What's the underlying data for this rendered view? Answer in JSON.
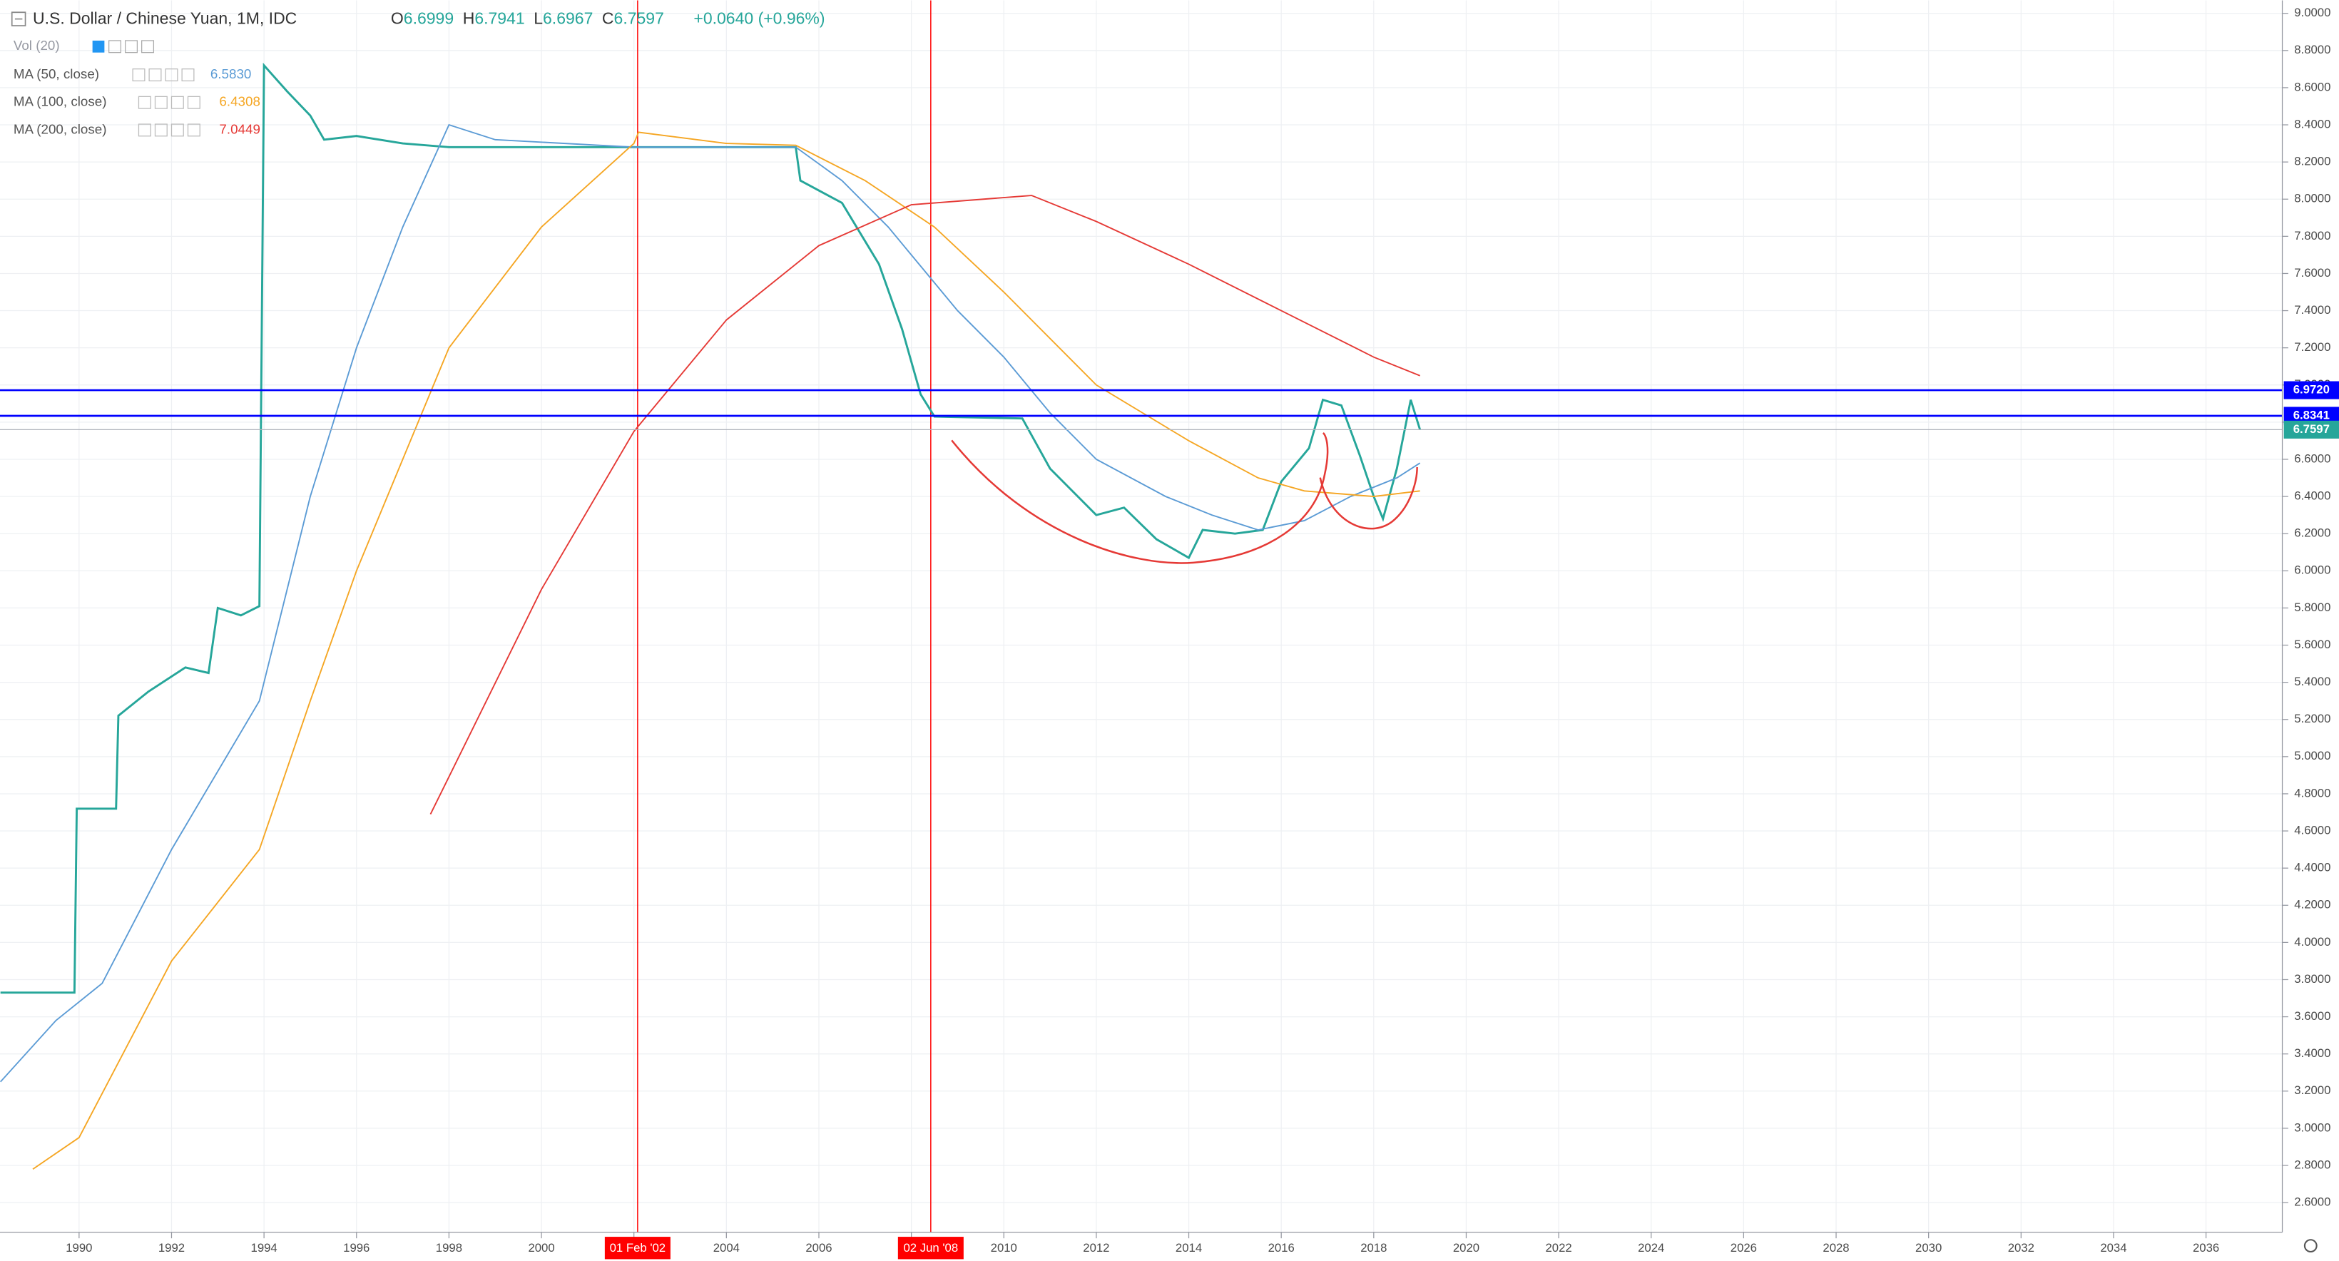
{
  "chart_data": {
    "type": "line",
    "title": "U.S. Dollar / Chinese Yuan, 1M, IDC",
    "ohlc": [
      {
        "label": "O",
        "value": 6.6999
      },
      {
        "label": "H",
        "value": 6.7941
      },
      {
        "label": "L",
        "value": 6.6967
      },
      {
        "label": "C",
        "value": 6.7597
      }
    ],
    "change": "+0.0640 (+0.96%)",
    "volume_label": "Vol (20)",
    "xlim": [
      1988.29,
      2037.65
    ],
    "ylim": [
      2.44,
      9.07
    ],
    "xticks": [
      1990,
      1992,
      1994,
      1996,
      1998,
      2000,
      2002,
      2004,
      2006,
      2008,
      2010,
      2012,
      2014,
      2016,
      2018,
      2020,
      2022,
      2024,
      2026,
      2028,
      2030,
      2032,
      2034,
      2036
    ],
    "yticks": [
      {
        "value": 2.6,
        "label": "2.6000"
      },
      {
        "value": 2.8,
        "label": "2.8000"
      },
      {
        "value": 3.0,
        "label": "3.0000"
      },
      {
        "value": 3.2,
        "label": "3.2000"
      },
      {
        "value": 3.4,
        "label": "3.4000"
      },
      {
        "value": 3.6,
        "label": "3.6000"
      },
      {
        "value": 3.8,
        "label": "3.8000"
      },
      {
        "value": 4.0,
        "label": "4.0000"
      },
      {
        "value": 4.2,
        "label": "4.2000"
      },
      {
        "value": 4.4,
        "label": "4.4000"
      },
      {
        "value": 4.6,
        "label": "4.6000"
      },
      {
        "value": 4.8,
        "label": "4.8000"
      },
      {
        "value": 5.0,
        "label": "5.0000"
      },
      {
        "value": 5.2,
        "label": "5.2000"
      },
      {
        "value": 5.4,
        "label": "5.4000"
      },
      {
        "value": 5.6,
        "label": "5.6000"
      },
      {
        "value": 5.8,
        "label": "5.8000"
      },
      {
        "value": 6.0,
        "label": "6.0000"
      },
      {
        "value": 6.2,
        "label": "6.2000"
      },
      {
        "value": 6.4,
        "label": "6.4000"
      },
      {
        "value": 6.6,
        "label": "6.6000"
      },
      {
        "value": 6.8,
        "label": "6.8000"
      },
      {
        "value": 7.0,
        "label": "7.0000"
      },
      {
        "value": 7.2,
        "label": "7.2000"
      },
      {
        "value": 7.4,
        "label": "7.4000"
      },
      {
        "value": 7.6,
        "label": "7.6000"
      },
      {
        "value": 7.8,
        "label": "7.8000"
      },
      {
        "value": 8.0,
        "label": "8.0000"
      },
      {
        "value": 8.2,
        "label": "8.2000"
      },
      {
        "value": 8.4,
        "label": "8.4000"
      },
      {
        "value": 8.6,
        "label": "8.6000"
      },
      {
        "value": 8.8,
        "label": "8.8000"
      },
      {
        "value": 9.0,
        "label": "9.0000"
      }
    ],
    "grid": true,
    "series": [
      {
        "color": "#26a69a",
        "x": [
          1988.3,
          1989.9,
          1989.95,
          1990.8,
          1990.85,
          1991.5,
          1992.3,
          1992.8,
          1993.0,
          1993.5,
          1993.9,
          1994.0,
          1994.5,
          1995.0,
          1995.3,
          1996.0,
          1997.0,
          1998.0,
          2000.0,
          2005.5,
          2005.6,
          2006.5,
          2007.3,
          2007.8,
          2008.2,
          2008.5,
          2010.4,
          2011.0,
          2012.0,
          2012.6,
          2013.3,
          2014.0,
          2014.3,
          2015.0,
          2015.6,
          2016.0,
          2016.6,
          2016.9,
          2017.3,
          2017.7,
          2018.0,
          2018.2,
          2018.5,
          2018.8,
          2019.0
        ],
        "values": [
          3.73,
          3.73,
          4.72,
          4.72,
          5.22,
          5.35,
          5.48,
          5.45,
          5.8,
          5.76,
          5.81,
          8.72,
          8.58,
          8.45,
          8.32,
          8.34,
          8.3,
          8.28,
          8.28,
          8.28,
          8.1,
          7.98,
          7.65,
          7.3,
          6.95,
          6.83,
          6.82,
          6.55,
          6.3,
          6.34,
          6.17,
          6.07,
          6.22,
          6.2,
          6.22,
          6.48,
          6.66,
          6.92,
          6.89,
          6.62,
          6.4,
          6.28,
          6.55,
          6.92,
          6.76
        ]
      },
      {
        "name": "MA (50, close)",
        "color": "#5b9bd5",
        "last": {
          "value": 6.583,
          "label": "6.5830"
        },
        "x": [
          1988.3,
          1989.5,
          1990.5,
          1992.0,
          1993.9,
          1995.0,
          1996.0,
          1997.0,
          1998.0,
          1999.0,
          2002.0,
          2005.5,
          2006.5,
          2007.5,
          2009.0,
          2010.0,
          2011.0,
          2012.0,
          2013.5,
          2014.5,
          2015.5,
          2016.5,
          2017.5,
          2018.5,
          2019.0
        ],
        "values": [
          3.25,
          3.58,
          3.78,
          4.5,
          5.3,
          6.4,
          7.2,
          7.85,
          8.4,
          8.32,
          8.28,
          8.28,
          8.1,
          7.85,
          7.4,
          7.15,
          6.85,
          6.6,
          6.4,
          6.3,
          6.22,
          6.27,
          6.4,
          6.5,
          6.58
        ]
      },
      {
        "name": "MA (100, close)",
        "color": "#f5a623",
        "last": {
          "value": 6.4308,
          "label": "6.4308"
        },
        "x": [
          1989.0,
          1990.0,
          1992.0,
          1993.9,
          1995.0,
          1996.0,
          1998.0,
          2000.0,
          2002.0,
          2002.1,
          2004.0,
          2005.5,
          2007.0,
          2008.5,
          2010.0,
          2012.0,
          2014.0,
          2015.5,
          2016.5,
          2018.0,
          2019.0
        ],
        "values": [
          2.78,
          2.95,
          3.9,
          4.5,
          5.3,
          6.0,
          7.2,
          7.85,
          8.3,
          8.36,
          8.3,
          8.29,
          8.1,
          7.85,
          7.5,
          7.0,
          6.7,
          6.5,
          6.43,
          6.4,
          6.43
        ]
      },
      {
        "name": "MA (200, close)",
        "color": "#e53935",
        "last": {
          "value": 7.0449,
          "label": "7.0449"
        },
        "x": [
          1997.6,
          2000.0,
          2002.0,
          2004.0,
          2006.0,
          2008.0,
          2010.6,
          2012.0,
          2014.0,
          2016.0,
          2018.0,
          2019.0
        ],
        "values": [
          4.69,
          5.9,
          6.75,
          7.35,
          7.75,
          7.97,
          8.02,
          7.88,
          7.65,
          7.4,
          7.15,
          7.05
        ]
      }
    ],
    "hlines": [
      {
        "value": 6.972,
        "label": "6.9720",
        "color": "#0000ff"
      },
      {
        "value": 6.8341,
        "label": "6.8341",
        "color": "#0000ff"
      }
    ],
    "last_price": {
      "value": 6.7597,
      "label": "6.7597",
      "color": "#26a69a"
    },
    "vlines": [
      {
        "value": 2002.08,
        "label": "01 Feb '02",
        "color": "#ff0000"
      },
      {
        "value": 2008.42,
        "label": "02 Jun '08",
        "color": "#ff0000"
      }
    ]
  }
}
